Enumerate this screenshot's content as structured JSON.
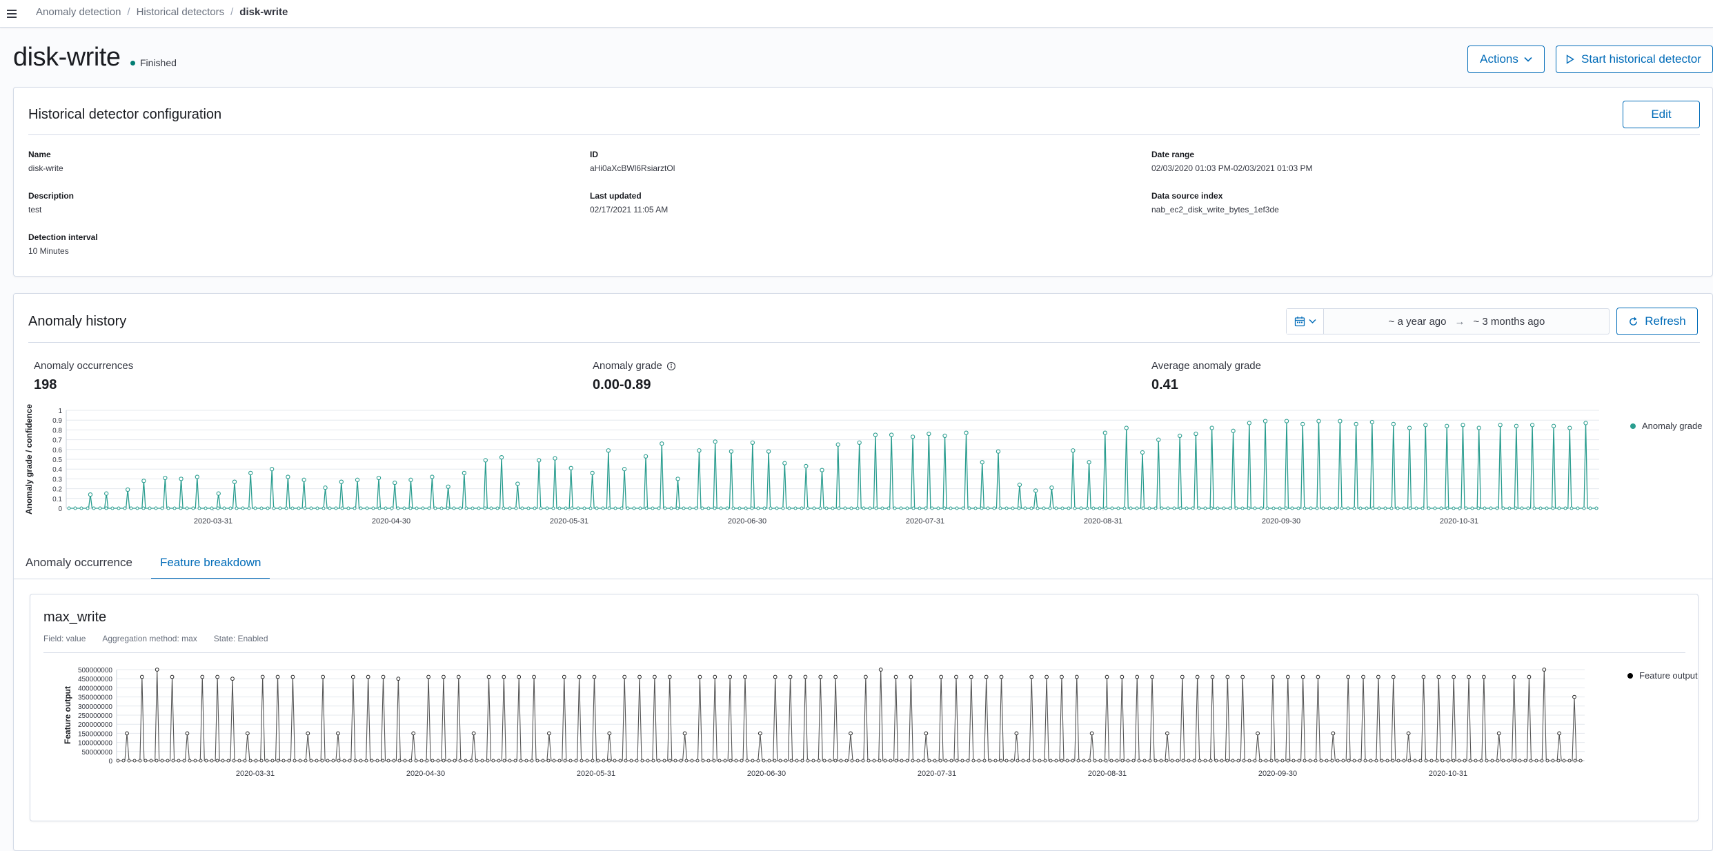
{
  "breadcrumbs": [
    "Anomaly detection",
    "Historical detectors",
    "disk-write"
  ],
  "page": {
    "title": "disk-write",
    "status": "Finished",
    "status_color": "#017d73",
    "actions_label": "Actions",
    "start_label": "Start historical detector"
  },
  "config": {
    "title": "Historical detector configuration",
    "edit_label": "Edit",
    "fields": {
      "name_label": "Name",
      "name": "disk-write",
      "id_label": "ID",
      "id": "aHi0aXcBWl6RsiarztOl",
      "date_range_label": "Date range",
      "date_range": "02/03/2020 01:03 PM-02/03/2021 01:03 PM",
      "description_label": "Description",
      "description": "test",
      "last_updated_label": "Last updated",
      "last_updated": "02/17/2021 11:05 AM",
      "data_source_label": "Data source index",
      "data_source": "nab_ec2_disk_write_bytes_1ef3de",
      "interval_label": "Detection interval",
      "interval": "10 Minutes"
    }
  },
  "history": {
    "title": "Anomaly history",
    "date_from": "~ a year ago",
    "date_to": "~ 3 months ago",
    "refresh_label": "Refresh",
    "stats": {
      "occurrences_label": "Anomaly occurrences",
      "occurrences": "198",
      "grade_label": "Anomaly grade",
      "grade": "0.00-0.89",
      "avg_label": "Average anomaly grade",
      "avg": "0.41"
    }
  },
  "tabs": [
    "Anomaly occurrence",
    "Feature breakdown"
  ],
  "feature": {
    "name": "max_write",
    "field": "Field: value",
    "aggregation": "Aggregation method: max",
    "state": "State: Enabled"
  },
  "chart_data": [
    {
      "type": "line",
      "ylabel": "Anomaly grade / confidence",
      "ylim": [
        0,
        1
      ],
      "yticks": [
        "0",
        "0.1",
        "0.2",
        "0.3",
        "0.4",
        "0.5",
        "0.6",
        "0.7",
        "0.8",
        "0.9",
        "1"
      ],
      "xticks": [
        "2020-03-31",
        "2020-04-30",
        "2020-05-31",
        "2020-06-30",
        "2020-07-31",
        "2020-08-31",
        "2020-09-30",
        "2020-10-31"
      ],
      "legend": "top-right",
      "color": "#2a9d8f",
      "series": [
        {
          "name": "Anomaly grade",
          "x": [
            "2020-02-19",
            "2020-02-22",
            "2020-02-26",
            "2020-02-29",
            "2020-03-04",
            "2020-03-07",
            "2020-03-10",
            "2020-03-14",
            "2020-03-17",
            "2020-03-20",
            "2020-03-24",
            "2020-03-27",
            "2020-03-30",
            "2020-04-03",
            "2020-04-06",
            "2020-04-09",
            "2020-04-13",
            "2020-04-16",
            "2020-04-19",
            "2020-04-23",
            "2020-04-26",
            "2020-04-29",
            "2020-05-03",
            "2020-05-06",
            "2020-05-09",
            "2020-05-13",
            "2020-05-16",
            "2020-05-19",
            "2020-05-23",
            "2020-05-26",
            "2020-05-29",
            "2020-06-02",
            "2020-06-05",
            "2020-06-08",
            "2020-06-12",
            "2020-06-15",
            "2020-06-18",
            "2020-06-22",
            "2020-06-25",
            "2020-06-28",
            "2020-07-02",
            "2020-07-05",
            "2020-07-08",
            "2020-07-12",
            "2020-07-15",
            "2020-07-18",
            "2020-07-22",
            "2020-07-25",
            "2020-07-28",
            "2020-08-01",
            "2020-08-04",
            "2020-08-07",
            "2020-08-11",
            "2020-08-14",
            "2020-08-17",
            "2020-08-21",
            "2020-08-24",
            "2020-08-27",
            "2020-08-31",
            "2020-09-03",
            "2020-09-06",
            "2020-09-10",
            "2020-09-13",
            "2020-09-16",
            "2020-09-20",
            "2020-09-23",
            "2020-09-26",
            "2020-09-30",
            "2020-10-03",
            "2020-10-06",
            "2020-10-10",
            "2020-10-13",
            "2020-10-16",
            "2020-10-20",
            "2020-10-23",
            "2020-10-26",
            "2020-10-30",
            "2020-11-02",
            "2020-11-05",
            "2020-11-09",
            "2020-11-12",
            "2020-11-15",
            "2020-11-19",
            "2020-11-22",
            "2020-11-25"
          ],
          "values": [
            0.14,
            0.15,
            0.19,
            0.28,
            0.31,
            0.3,
            0.32,
            0.15,
            0.27,
            0.36,
            0.4,
            0.32,
            0.29,
            0.21,
            0.27,
            0.29,
            0.31,
            0.26,
            0.29,
            0.32,
            0.22,
            0.36,
            0.49,
            0.52,
            0.25,
            0.49,
            0.51,
            0.41,
            0.36,
            0.59,
            0.4,
            0.53,
            0.66,
            0.3,
            0.59,
            0.68,
            0.58,
            0.67,
            0.58,
            0.46,
            0.43,
            0.39,
            0.65,
            0.67,
            0.75,
            0.75,
            0.73,
            0.76,
            0.74,
            0.77,
            0.47,
            0.58,
            0.24,
            0.18,
            0.21,
            0.59,
            0.47,
            0.77,
            0.82,
            0.57,
            0.7,
            0.74,
            0.76,
            0.82,
            0.79,
            0.87,
            0.89,
            0.89,
            0.86,
            0.89,
            0.89,
            0.86,
            0.88,
            0.86,
            0.82,
            0.85,
            0.84,
            0.85,
            0.82,
            0.85,
            0.84,
            0.85,
            0.84,
            0.82,
            0.87
          ]
        }
      ]
    },
    {
      "type": "line",
      "ylabel": "Feature output",
      "ylim": [
        0,
        500000000
      ],
      "yticks": [
        "0",
        "50000000",
        "100000000",
        "150000000",
        "200000000",
        "250000000",
        "300000000",
        "350000000",
        "400000000",
        "450000000",
        "500000000"
      ],
      "xticks": [
        "2020-03-31",
        "2020-04-30",
        "2020-05-31",
        "2020-06-30",
        "2020-07-31",
        "2020-08-31",
        "2020-09-30",
        "2020-10-31"
      ],
      "legend": "top-right",
      "color": "#000000",
      "series": [
        {
          "name": "Feature output",
          "values": [
            150000000,
            460000000,
            500000000,
            460000000,
            150000000,
            460000000,
            460000000,
            450000000,
            150000000,
            460000000,
            460000000,
            460000000,
            150000000,
            460000000,
            150000000,
            460000000,
            460000000,
            460000000,
            450000000,
            150000000,
            460000000,
            460000000,
            460000000,
            150000000,
            460000000,
            460000000,
            460000000,
            460000000,
            150000000,
            460000000,
            460000000,
            460000000,
            150000000,
            460000000,
            460000000,
            460000000,
            460000000,
            150000000,
            460000000,
            460000000,
            460000000,
            460000000,
            150000000,
            460000000,
            460000000,
            460000000,
            460000000,
            460000000,
            150000000,
            460000000,
            500000000,
            460000000,
            460000000,
            150000000,
            460000000,
            460000000,
            460000000,
            460000000,
            460000000,
            150000000,
            460000000,
            460000000,
            460000000,
            460000000,
            150000000,
            460000000,
            460000000,
            460000000,
            460000000,
            150000000,
            460000000,
            460000000,
            460000000,
            460000000,
            460000000,
            150000000,
            460000000,
            460000000,
            460000000,
            460000000,
            150000000,
            460000000,
            460000000,
            460000000,
            460000000,
            150000000,
            460000000,
            460000000,
            460000000,
            460000000,
            460000000,
            150000000,
            460000000,
            460000000,
            500000000,
            150000000,
            350000000
          ]
        }
      ]
    }
  ]
}
